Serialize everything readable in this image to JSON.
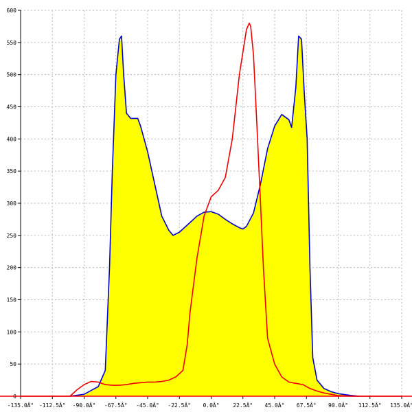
{
  "chart_data": {
    "type": "area-line",
    "xlim": [
      -135,
      135
    ],
    "ylim": [
      0,
      600
    ],
    "xticks": [
      {
        "value": -135,
        "label": "-135.0Â°"
      },
      {
        "value": -112.5,
        "label": "-112.5Â°"
      },
      {
        "value": -90,
        "label": "-90.0Â°"
      },
      {
        "value": -67.5,
        "label": "-67.5Â°"
      },
      {
        "value": -45,
        "label": "-45.0Â°"
      },
      {
        "value": -22.5,
        "label": "-22.5Â°"
      },
      {
        "value": 0,
        "label": "0.0Â°"
      },
      {
        "value": 22.5,
        "label": "22.5Â°"
      },
      {
        "value": 45,
        "label": "45.0Â°"
      },
      {
        "value": 67.5,
        "label": "67.5Â°"
      },
      {
        "value": 90,
        "label": "90.0Â°"
      },
      {
        "value": 112.5,
        "label": "112.5Â°"
      },
      {
        "value": 135,
        "label": "135.0Â°"
      }
    ],
    "yticks": [
      0,
      50,
      100,
      150,
      200,
      250,
      300,
      350,
      400,
      450,
      500,
      550,
      600
    ],
    "grid": true,
    "series": [
      {
        "color": "#0000cc",
        "fill": "#ffff00",
        "x": [
          -100,
          -90,
          -80,
          -75,
          -72,
          -70,
          -67.5,
          -65,
          -63.5,
          -62,
          -60,
          -57,
          -52,
          -50,
          -45,
          -40,
          -35,
          -30,
          -27,
          -22.5,
          -15,
          -10,
          -5,
          0,
          5,
          10,
          15,
          20,
          22.5,
          25,
          30,
          35,
          40,
          45,
          50,
          55,
          57,
          60,
          62,
          64,
          66,
          68,
          70,
          72,
          75,
          80,
          85,
          90,
          100,
          105
        ],
        "values": [
          0,
          3,
          15,
          40,
          200,
          350,
          500,
          555,
          560,
          500,
          440,
          432,
          432,
          420,
          380,
          330,
          280,
          258,
          250,
          255,
          270,
          280,
          286,
          287,
          283,
          275,
          268,
          262,
          260,
          264,
          285,
          330,
          385,
          420,
          438,
          430,
          418,
          480,
          560,
          555,
          470,
          400,
          200,
          60,
          25,
          12,
          7,
          4,
          1,
          0
        ]
      },
      {
        "color": "#ee0000",
        "x": [
          -135,
          -100,
          -95,
          -90,
          -85,
          -80,
          -75,
          -70,
          -65,
          -60,
          -55,
          -50,
          -45,
          -40,
          -35,
          -30,
          -25,
          -20,
          -17,
          -15,
          -10,
          -5,
          0,
          5,
          10,
          15,
          20,
          25,
          27,
          28,
          30,
          32,
          35,
          37,
          40,
          45,
          50,
          55,
          60,
          65,
          70,
          75,
          80,
          85,
          90,
          100,
          135
        ],
        "values": [
          0,
          0,
          10,
          18,
          23,
          22,
          18,
          17,
          17,
          18,
          20,
          21,
          22,
          22,
          23,
          25,
          30,
          40,
          80,
          130,
          215,
          280,
          310,
          320,
          340,
          400,
          500,
          570,
          580,
          575,
          530,
          440,
          300,
          200,
          90,
          50,
          30,
          22,
          20,
          18,
          12,
          8,
          5,
          3,
          1,
          0,
          0
        ]
      }
    ]
  }
}
